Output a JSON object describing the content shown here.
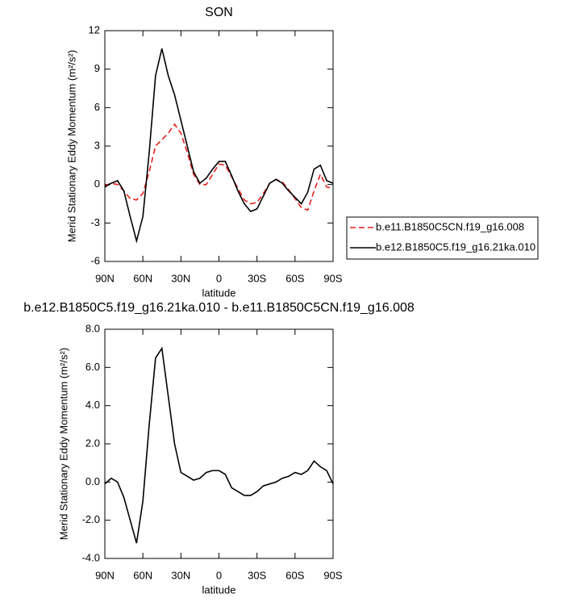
{
  "chart_data": [
    {
      "type": "line",
      "title": "SON",
      "x_label": "latitude",
      "y_label": "Merid Stationary Eddy Momentum (m²/s²)",
      "x": [
        90,
        85,
        80,
        75,
        70,
        65,
        60,
        55,
        50,
        45,
        40,
        35,
        30,
        25,
        20,
        15,
        10,
        5,
        0,
        -5,
        -10,
        -15,
        -20,
        -25,
        -30,
        -35,
        -40,
        -45,
        -50,
        -55,
        -60,
        -65,
        -70,
        -75,
        -80,
        -85,
        -90
      ],
      "xlim": [
        90,
        -90
      ],
      "xticks": [
        {
          "value": 90,
          "label": "90N"
        },
        {
          "value": 60,
          "label": "60N"
        },
        {
          "value": 30,
          "label": "30N"
        },
        0,
        {
          "value": -30,
          "label": "30S"
        },
        {
          "value": -60,
          "label": "60S"
        },
        {
          "value": -90,
          "label": "90S"
        }
      ],
      "ylim": [
        -6,
        12
      ],
      "yticks": [
        -6,
        -3,
        0,
        3,
        6,
        9,
        12
      ],
      "legend": "outside-right",
      "series": [
        {
          "name": "b.e11.B1850C5CN.f19_g16.008",
          "color": "#e8201e",
          "dashed": true,
          "values": [
            -0.1,
            0.1,
            0.0,
            -0.5,
            -1.1,
            -1.2,
            -0.7,
            1.0,
            3.0,
            3.5,
            4.0,
            4.7,
            4.0,
            2.5,
            0.8,
            0.0,
            0.0,
            0.8,
            1.6,
            1.5,
            0.6,
            -0.3,
            -1.2,
            -1.5,
            -1.4,
            -0.7,
            0.1,
            0.4,
            0.2,
            -0.4,
            -1.1,
            -1.8,
            -2.0,
            -0.5,
            0.8,
            -0.2,
            -0.3
          ]
        },
        {
          "name": "b.e12.B1850C5.f19_g16.21ka.010",
          "color": "#000000",
          "dashed": false,
          "values": [
            -0.2,
            0.1,
            0.3,
            -0.5,
            -2.5,
            -4.4,
            -2.5,
            2.5,
            8.5,
            10.6,
            8.5,
            7.0,
            5.0,
            3.0,
            1.0,
            0.1,
            0.5,
            1.2,
            1.8,
            1.8,
            0.7,
            -0.5,
            -1.5,
            -2.1,
            -1.9,
            -0.9,
            0.1,
            0.4,
            0.1,
            -0.5,
            -1.0,
            -1.5,
            -0.6,
            1.2,
            1.5,
            0.3,
            0.1
          ]
        }
      ]
    },
    {
      "type": "line",
      "title": "b.e12.B1850C5.f19_g16.21ka.010 - b.e11.B1850C5CN.f19_g16.008",
      "x_label": "latitude",
      "y_label": "Merid Stationary Eddy Momentum (m²/s²)",
      "x": [
        90,
        85,
        80,
        75,
        70,
        65,
        60,
        55,
        50,
        45,
        40,
        35,
        30,
        25,
        20,
        15,
        10,
        5,
        0,
        -5,
        -10,
        -15,
        -20,
        -25,
        -30,
        -35,
        -40,
        -45,
        -50,
        -55,
        -60,
        -65,
        -70,
        -75,
        -80,
        -85,
        -90
      ],
      "xlim": [
        90,
        -90
      ],
      "xticks": [
        {
          "value": 90,
          "label": "90N"
        },
        {
          "value": 60,
          "label": "60N"
        },
        {
          "value": 30,
          "label": "30N"
        },
        0,
        {
          "value": -30,
          "label": "30S"
        },
        {
          "value": -60,
          "label": "60S"
        },
        {
          "value": -90,
          "label": "90S"
        }
      ],
      "ylim": [
        -4,
        8
      ],
      "yticks": [
        {
          "value": -4,
          "label": "-4.0"
        },
        {
          "value": -2,
          "label": "-2.0"
        },
        {
          "value": 0,
          "label": "0.0"
        },
        {
          "value": 2,
          "label": "2.0"
        },
        {
          "value": 4,
          "label": "4.0"
        },
        {
          "value": 6,
          "label": "6.0"
        },
        {
          "value": 8,
          "label": "8.0"
        }
      ],
      "series": [
        {
          "color": "#000000",
          "dashed": false,
          "values": [
            -0.1,
            0.2,
            0.0,
            -0.8,
            -2.0,
            -3.2,
            -1.0,
            3.0,
            6.5,
            7.0,
            4.5,
            2.0,
            0.5,
            0.3,
            0.1,
            0.2,
            0.5,
            0.6,
            0.6,
            0.4,
            -0.3,
            -0.5,
            -0.7,
            -0.7,
            -0.5,
            -0.2,
            -0.1,
            0.0,
            0.2,
            0.3,
            0.5,
            0.4,
            0.6,
            1.1,
            0.8,
            0.6,
            -0.1
          ]
        }
      ]
    }
  ]
}
